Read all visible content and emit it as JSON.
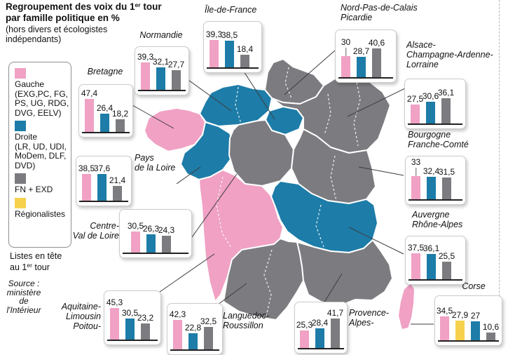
{
  "title": {
    "line1_pre": "Regroupement des voix du 1",
    "line1_sup": "er",
    "line1_post": " tour",
    "line2": "par famille politique en %",
    "subtitle": "(hors divers et écologistes indépendants)"
  },
  "legend": {
    "items": [
      {
        "id": "gauche",
        "label": "Gauche",
        "detail": "(EXG,PC, FG, PS, UG, RDG, DVG, EELV)",
        "color": "#f0a1c4"
      },
      {
        "id": "droite",
        "label": "Droite",
        "detail": "(LR, UD, UDI, MoDem, DLF, DVD)",
        "color": "#1d7ca8"
      },
      {
        "id": "fn",
        "label": "FN + EXD",
        "detail": "",
        "color": "#7c7c80"
      },
      {
        "id": "regionalistes",
        "label": "Régionalistes",
        "detail": "",
        "color": "#f6d14e"
      }
    ]
  },
  "note": {
    "line1": "Listes en tête",
    "line2_pre": "au 1",
    "line2_sup": "er",
    "line2_post": " tour"
  },
  "source": "Source : ministère de l'Intérieur",
  "colors": {
    "pink": "#f0a1c4",
    "blue": "#1d7ca8",
    "gray": "#7c7c80",
    "yellow": "#f6d14e"
  },
  "chart_data": {
    "type": "bar",
    "unit": "%",
    "note": "Mini bar charts per region; map fill = leading list in 1st round",
    "regions": [
      {
        "id": "bretagne",
        "name": "Bretagne",
        "map_color": "pink",
        "values": [
          {
            "family": "gauche",
            "value": 47.4,
            "label": "47,4"
          },
          {
            "family": "droite",
            "value": 26.4,
            "label": "26,4"
          },
          {
            "family": "fn",
            "value": 18.2,
            "label": "18,2"
          }
        ]
      },
      {
        "id": "normandie",
        "name": "Normandie",
        "map_color": "blue",
        "values": [
          {
            "family": "gauche",
            "value": 39.3,
            "label": "39,3"
          },
          {
            "family": "droite",
            "value": 32.1,
            "label": "32,1"
          },
          {
            "family": "fn",
            "value": 27.7,
            "label": "27,7"
          }
        ]
      },
      {
        "id": "idf",
        "name": "Île-de-France",
        "map_color": "blue",
        "values": [
          {
            "family": "gauche",
            "value": 39.3,
            "label": "39,3"
          },
          {
            "family": "droite",
            "value": 38.5,
            "label": "38,5"
          },
          {
            "family": "fn",
            "value": 18.4,
            "label": "18,4"
          }
        ]
      },
      {
        "id": "npdc",
        "name": "Nord-Pas-de-Calais\nPicardie",
        "map_color": "gray",
        "values": [
          {
            "family": "gauche",
            "value": 30,
            "label": "30"
          },
          {
            "family": "droite",
            "value": 28.7,
            "label": "28,7"
          },
          {
            "family": "fn",
            "value": 40.6,
            "label": "40,6"
          }
        ]
      },
      {
        "id": "acal",
        "name": "Alsace-\nChampagne-Ardenne-\nLorraine",
        "map_color": "gray",
        "values": [
          {
            "family": "gauche",
            "value": 27.5,
            "label": "27,5"
          },
          {
            "family": "droite",
            "value": 30.6,
            "label": "30,6"
          },
          {
            "family": "fn",
            "value": 36.1,
            "label": "36,1"
          }
        ]
      },
      {
        "id": "bfc",
        "name": "Bourgogne\nFranche-Comté",
        "map_color": "gray",
        "values": [
          {
            "family": "gauche",
            "value": 33,
            "label": "33"
          },
          {
            "family": "droite",
            "value": 32.4,
            "label": "32,4"
          },
          {
            "family": "fn",
            "value": 31.5,
            "label": "31,5"
          }
        ]
      },
      {
        "id": "pdll",
        "name": "Pays\nde la Loire",
        "map_color": "blue",
        "values": [
          {
            "family": "gauche",
            "value": 38.5,
            "label": "38,5"
          },
          {
            "family": "droite",
            "value": 37.6,
            "label": "37,6"
          },
          {
            "family": "fn",
            "value": 21.4,
            "label": "21,4"
          }
        ]
      },
      {
        "id": "centre",
        "name": "Centre-\nVal de Loire",
        "map_color": "gray",
        "values": [
          {
            "family": "gauche",
            "value": 30.5,
            "label": "30,5"
          },
          {
            "family": "droite",
            "value": 26.3,
            "label": "26,3"
          },
          {
            "family": "fn",
            "value": 24.3,
            "label": "24,3"
          }
        ]
      },
      {
        "id": "ara",
        "name": "Auvergne\nRhône-Alpes",
        "map_color": "blue",
        "values": [
          {
            "family": "gauche",
            "value": 37.5,
            "label": "37,5"
          },
          {
            "family": "droite",
            "value": 36.1,
            "label": "36,1"
          },
          {
            "family": "fn",
            "value": 25.5,
            "label": "25,5"
          }
        ]
      },
      {
        "id": "alpc",
        "name": "Aquitaine-\nLimousin\nPoitou-",
        "map_color": "pink",
        "values": [
          {
            "family": "gauche",
            "value": 45.3,
            "label": "45,3"
          },
          {
            "family": "droite",
            "value": 30.5,
            "label": "30,5"
          },
          {
            "family": "fn",
            "value": 23.2,
            "label": "23,2"
          }
        ]
      },
      {
        "id": "lrmp",
        "name": "Languedoc-\nRoussillon",
        "map_color": "gray",
        "values": [
          {
            "family": "gauche",
            "value": 42.3,
            "label": "42,3"
          },
          {
            "family": "droite",
            "value": 22.8,
            "label": "22,8"
          },
          {
            "family": "fn",
            "value": 32.5,
            "label": "32,5"
          }
        ]
      },
      {
        "id": "paca",
        "name": "Provence-\nAlpes-",
        "map_color": "gray",
        "values": [
          {
            "family": "gauche",
            "value": 25.3,
            "label": "25,3"
          },
          {
            "family": "droite",
            "value": 28.4,
            "label": "28,4"
          },
          {
            "family": "fn",
            "value": 41.7,
            "label": "41,7"
          }
        ]
      },
      {
        "id": "corse",
        "name": "Corse",
        "map_color": "pink",
        "values": [
          {
            "family": "gauche",
            "value": 34.5,
            "label": "34,5"
          },
          {
            "family": "regionalistes",
            "value": 27.9,
            "label": "27,9"
          },
          {
            "family": "droite",
            "value": 27,
            "label": "27"
          },
          {
            "family": "fn",
            "value": 10.6,
            "label": "10,6"
          }
        ]
      }
    ]
  }
}
